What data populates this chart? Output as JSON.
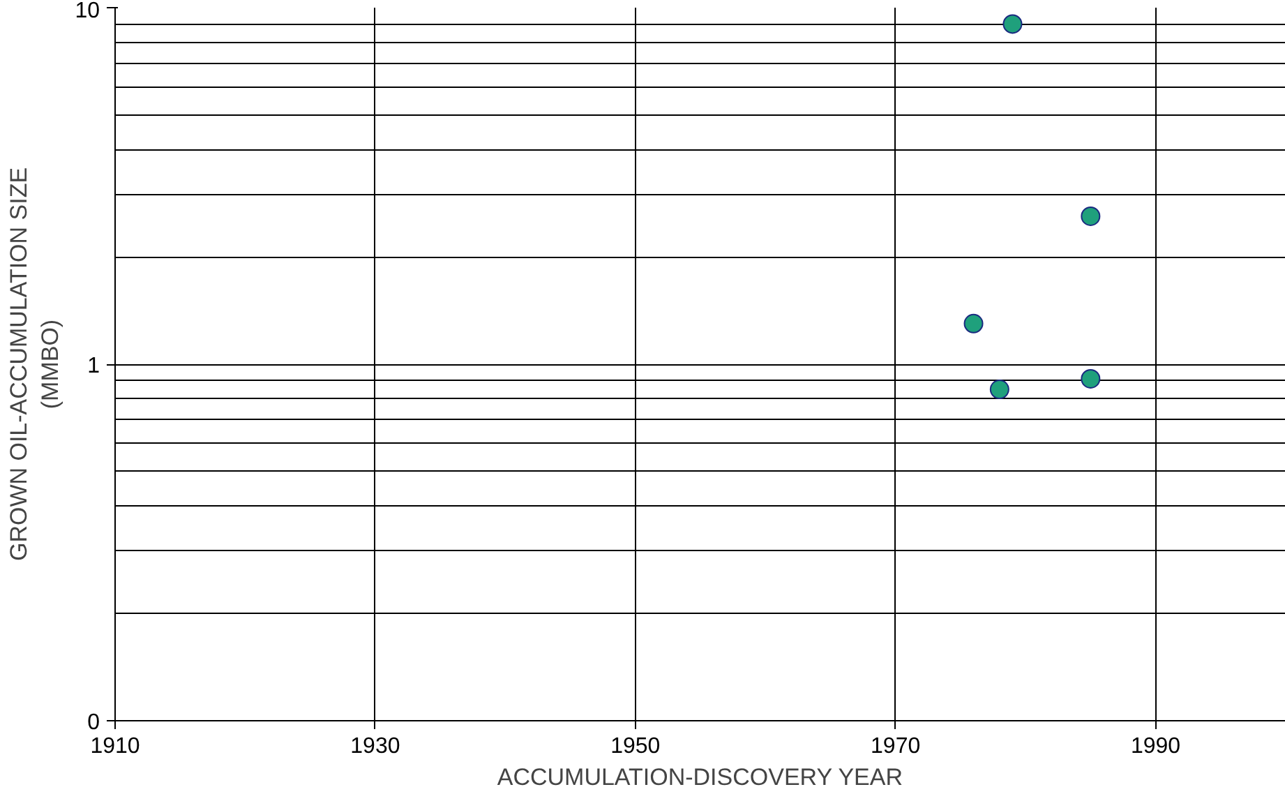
{
  "chart_data": {
    "type": "scatter",
    "xlabel": "ACCUMULATION-DISCOVERY YEAR",
    "ylabel": "GROWN OIL-ACCUMULATION SIZE\n(MMBO)",
    "x": [
      1979,
      1985,
      1976,
      1978,
      1985
    ],
    "series": [
      {
        "color": "#1fa07c",
        "values": [
          9,
          2.6,
          1.3,
          0.85,
          0.91
        ]
      }
    ],
    "xlim": [
      1910,
      2000
    ],
    "xticks": [
      1910,
      1930,
      1950,
      1970,
      1990
    ],
    "ylim": [
      0.1,
      10
    ],
    "yticks": [
      {
        "value": 0.1,
        "label": "0"
      },
      1,
      10
    ],
    "log": "y",
    "grid": true,
    "marker": "circle"
  }
}
